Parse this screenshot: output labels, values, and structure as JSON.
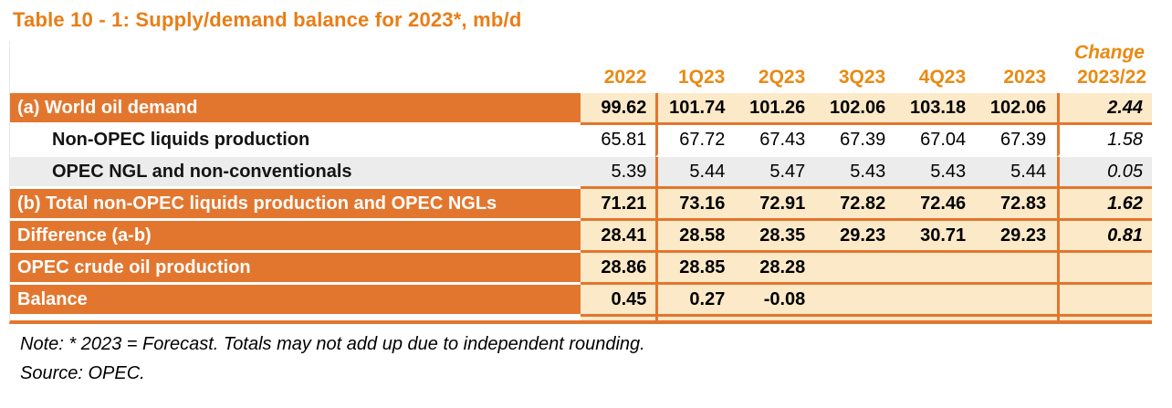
{
  "title": "Table 10 - 1: Supply/demand balance for 2023*, mb/d",
  "header": {
    "change_label": "Change",
    "columns": [
      "2022",
      "1Q23",
      "2Q23",
      "3Q23",
      "4Q23",
      "2023",
      "2023/22"
    ]
  },
  "table": {
    "rows": [
      {
        "label": "(a) World oil demand",
        "style": "orange",
        "values": [
          "99.62",
          "101.74",
          "101.26",
          "102.06",
          "103.18",
          "102.06"
        ],
        "change": "2.44"
      },
      {
        "label": "Non-OPEC liquids production",
        "style": "white",
        "values": [
          "65.81",
          "67.72",
          "67.43",
          "67.39",
          "67.04",
          "67.39"
        ],
        "change": "1.58"
      },
      {
        "label": "OPEC NGL and non-conventionals",
        "style": "gray",
        "values": [
          "5.39",
          "5.44",
          "5.47",
          "5.43",
          "5.43",
          "5.44"
        ],
        "change": "0.05"
      },
      {
        "label": "(b) Total non-OPEC liquids production and OPEC NGLs",
        "style": "orange",
        "values": [
          "71.21",
          "73.16",
          "72.91",
          "72.82",
          "72.46",
          "72.83"
        ],
        "change": "1.62"
      },
      {
        "label": "Difference (a-b)",
        "style": "orange",
        "values": [
          "28.41",
          "28.58",
          "28.35",
          "29.23",
          "30.71",
          "29.23"
        ],
        "change": "0.81"
      },
      {
        "label": "OPEC crude oil production",
        "style": "orange",
        "values": [
          "28.86",
          "28.85",
          "28.28",
          "",
          "",
          ""
        ],
        "change": ""
      },
      {
        "label": "Balance",
        "style": "orange",
        "values": [
          "0.45",
          "0.27",
          "-0.08",
          "",
          "",
          ""
        ],
        "change": ""
      }
    ]
  },
  "notes": {
    "note": "Note: * 2023 = Forecast. Totals may not add up due to independent rounding.",
    "source": "Source: OPEC."
  },
  "colors": {
    "accent_orange": "#E3762E",
    "header_text_orange": "#E98A12",
    "title_orange": "#E97D15",
    "cream_cell": "#FCE9C8",
    "gray_row": "#ECECEC"
  }
}
